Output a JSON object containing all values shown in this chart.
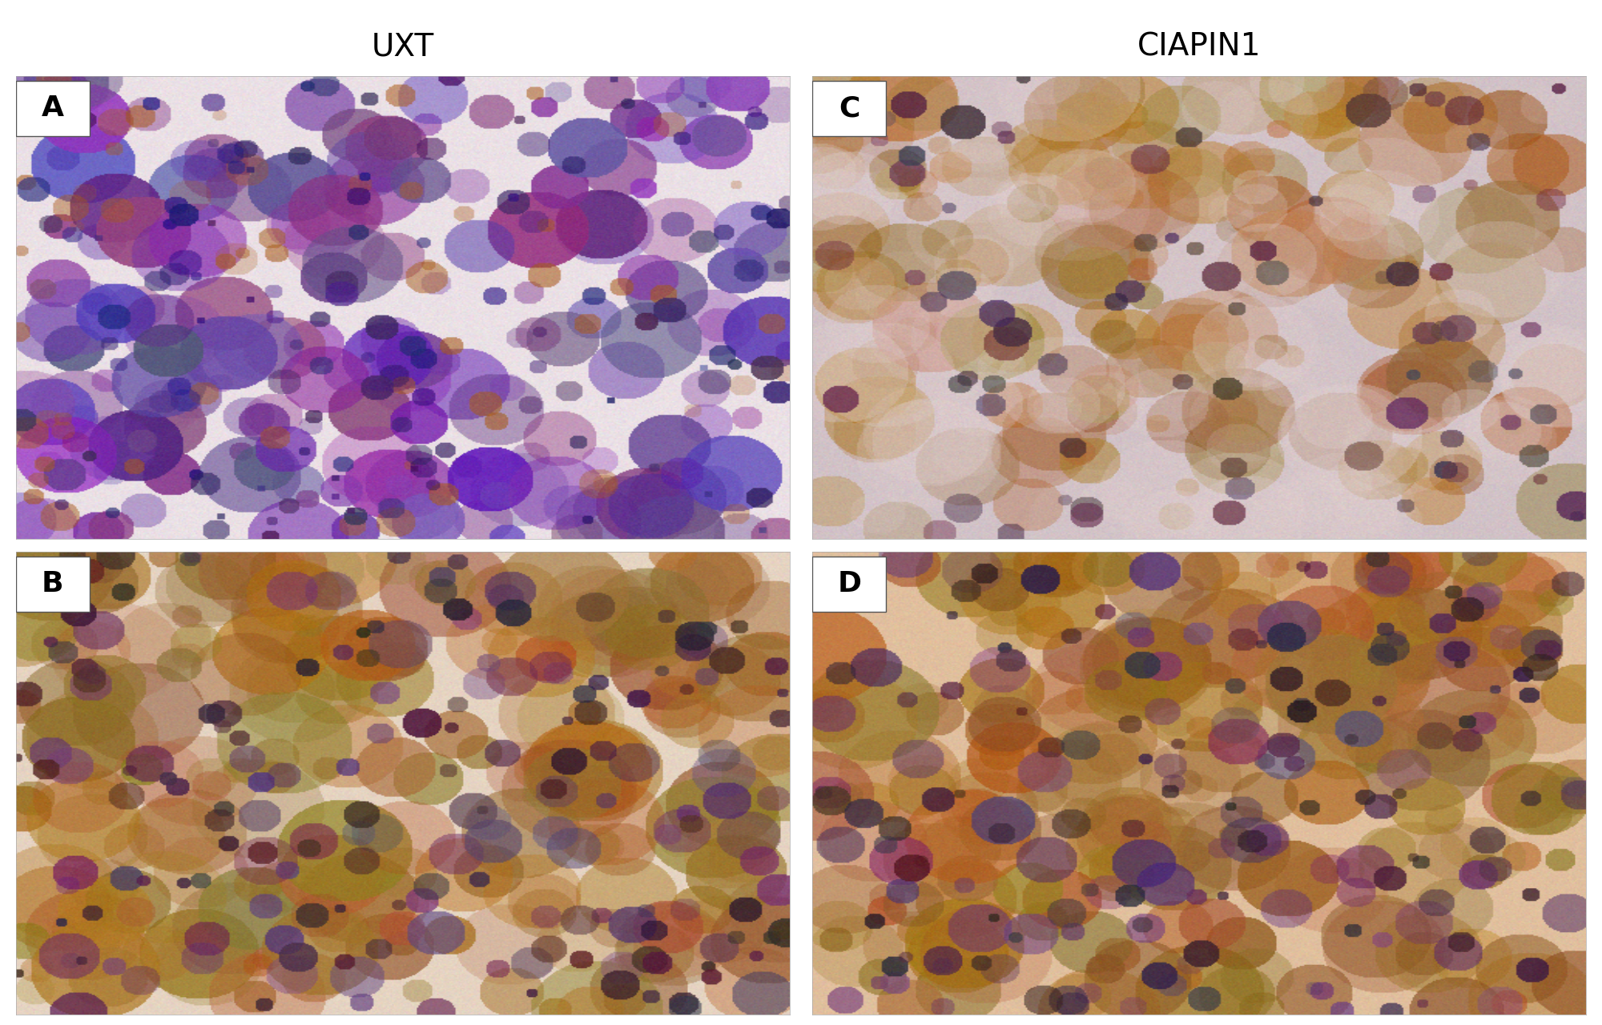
{
  "title_left": "UXT",
  "title_right": "CIAPIN1",
  "labels": [
    "A",
    "B",
    "C",
    "D"
  ],
  "bg_color": "#ffffff",
  "label_box_color": "#ffffff",
  "label_text_color": "#000000",
  "title_fontsize": 28,
  "label_fontsize": 26,
  "panel_A_base_color": [
    220,
    210,
    230
  ],
  "panel_B_base_color": [
    210,
    185,
    160
  ],
  "panel_C_base_color": [
    200,
    185,
    170
  ],
  "panel_D_base_color": [
    210,
    185,
    160
  ],
  "fig_width": 20.0,
  "fig_height": 12.8
}
